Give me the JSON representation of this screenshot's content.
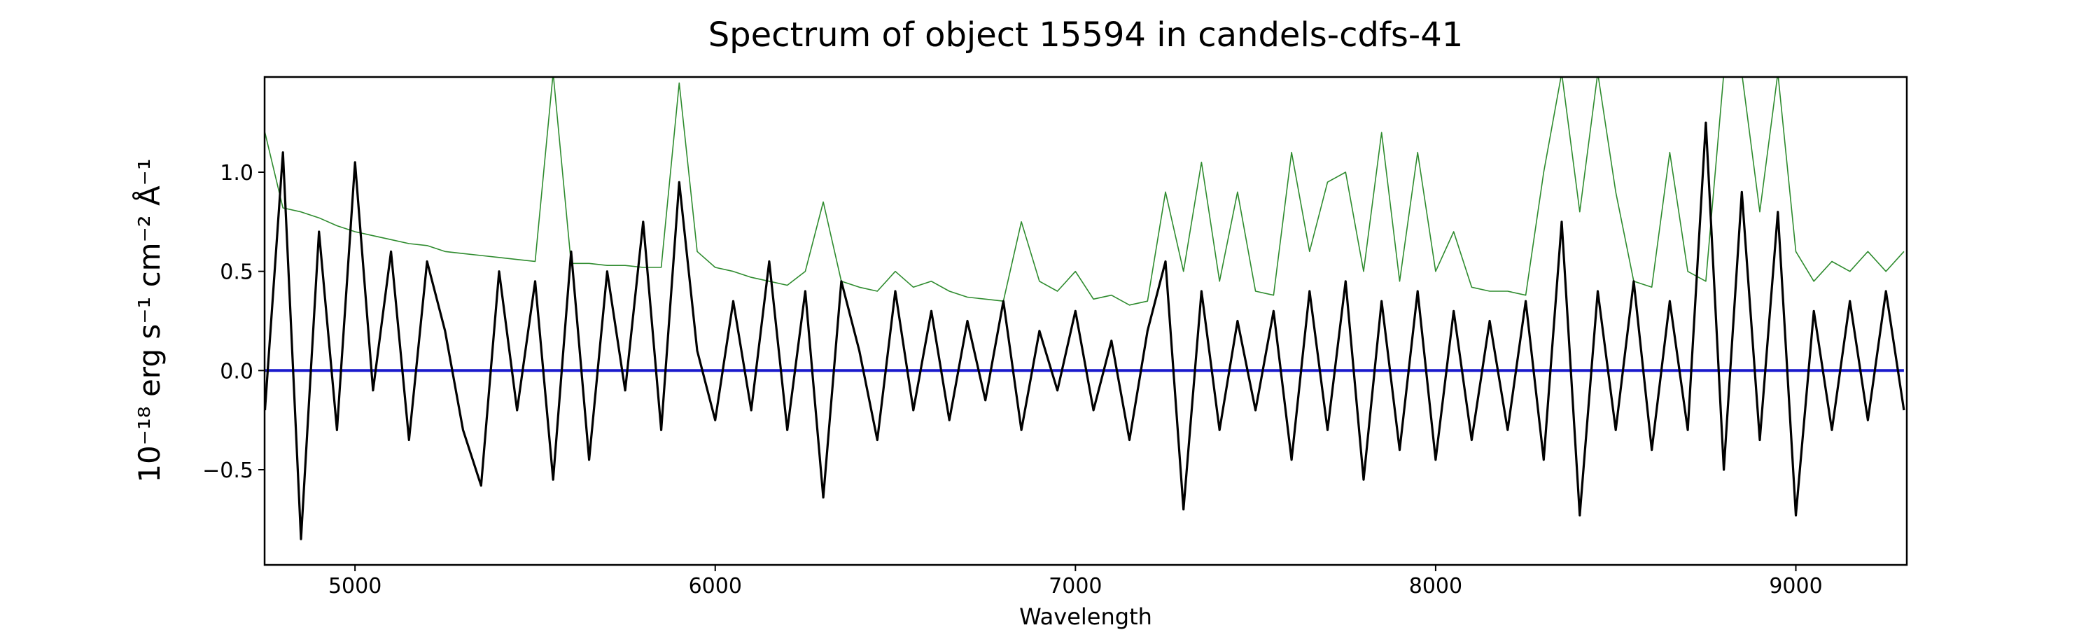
{
  "chart_data": {
    "type": "line",
    "title": "Spectrum of object 15594 in candels-cdfs-41",
    "x_label": "Wavelength",
    "y_label": "10⁻¹⁸ erg s⁻¹ cm⁻² Å⁻¹",
    "x": [
      4750,
      4800,
      4850,
      4900,
      4950,
      5000,
      5050,
      5100,
      5150,
      5200,
      5250,
      5300,
      5350,
      5400,
      5450,
      5500,
      5550,
      5600,
      5650,
      5700,
      5750,
      5800,
      5850,
      5900,
      5950,
      6000,
      6050,
      6100,
      6150,
      6200,
      6250,
      6300,
      6350,
      6400,
      6450,
      6500,
      6550,
      6600,
      6650,
      6700,
      6750,
      6800,
      6850,
      6900,
      6950,
      7000,
      7050,
      7100,
      7150,
      7200,
      7250,
      7300,
      7350,
      7400,
      7450,
      7500,
      7550,
      7600,
      7650,
      7700,
      7750,
      7800,
      7850,
      7900,
      7950,
      8000,
      8050,
      8100,
      8150,
      8200,
      8250,
      8300,
      8350,
      8400,
      8450,
      8500,
      8550,
      8600,
      8650,
      8700,
      8750,
      8800,
      8850,
      8900,
      8950,
      9000,
      9050,
      9100,
      9150,
      9200,
      9250,
      9300
    ],
    "series": [
      {
        "color": "#2e8b2e",
        "values": [
          1.2,
          0.82,
          0.8,
          0.77,
          0.73,
          0.7,
          0.68,
          0.66,
          0.64,
          0.63,
          0.6,
          0.59,
          0.58,
          0.57,
          0.56,
          0.55,
          1.5,
          0.54,
          0.54,
          0.53,
          0.53,
          0.52,
          0.52,
          1.45,
          0.6,
          0.52,
          0.5,
          0.47,
          0.45,
          0.43,
          0.5,
          0.85,
          0.45,
          0.42,
          0.4,
          0.5,
          0.42,
          0.45,
          0.4,
          0.37,
          0.36,
          0.35,
          0.75,
          0.45,
          0.4,
          0.5,
          0.36,
          0.38,
          0.33,
          0.35,
          0.9,
          0.5,
          1.05,
          0.45,
          0.9,
          0.4,
          0.38,
          1.1,
          0.6,
          0.95,
          1.0,
          0.5,
          1.2,
          0.45,
          1.1,
          0.5,
          0.7,
          0.42,
          0.4,
          0.4,
          0.38,
          1.0,
          1.5,
          0.8,
          1.5,
          0.9,
          0.45,
          0.42,
          1.1,
          0.5,
          0.45,
          1.5,
          1.5,
          0.8,
          1.5,
          0.6,
          0.45,
          0.55,
          0.5,
          0.6,
          0.5,
          0.6
        ]
      },
      {
        "color": "#1a1acc",
        "values": [
          0,
          0,
          0,
          0,
          0,
          0,
          0,
          0,
          0,
          0,
          0,
          0,
          0,
          0,
          0,
          0,
          0,
          0,
          0,
          0,
          0,
          0,
          0,
          0,
          0,
          0,
          0,
          0,
          0,
          0,
          0,
          0,
          0,
          0,
          0,
          0,
          0,
          0,
          0,
          0,
          0,
          0,
          0,
          0,
          0,
          0,
          0,
          0,
          0,
          0,
          0,
          0,
          0,
          0,
          0,
          0,
          0,
          0,
          0,
          0,
          0,
          0,
          0,
          0,
          0,
          0,
          0,
          0,
          0,
          0,
          0,
          0,
          0,
          0,
          0,
          0,
          0,
          0,
          0,
          0,
          0,
          0,
          0,
          0,
          0,
          0,
          0,
          0,
          0,
          0,
          0,
          0
        ]
      },
      {
        "color": "#000000",
        "values": [
          -0.2,
          1.1,
          -0.85,
          0.7,
          -0.3,
          1.05,
          -0.1,
          0.6,
          -0.35,
          0.55,
          0.2,
          -0.3,
          -0.58,
          0.5,
          -0.2,
          0.45,
          -0.55,
          0.6,
          -0.45,
          0.5,
          -0.1,
          0.75,
          -0.3,
          0.95,
          0.1,
          -0.25,
          0.35,
          -0.2,
          0.55,
          -0.3,
          0.4,
          -0.64,
          0.45,
          0.1,
          -0.35,
          0.4,
          -0.2,
          0.3,
          -0.25,
          0.25,
          -0.15,
          0.35,
          -0.3,
          0.2,
          -0.1,
          0.3,
          -0.2,
          0.15,
          -0.35,
          0.2,
          0.55,
          -0.7,
          0.4,
          -0.3,
          0.25,
          -0.2,
          0.3,
          -0.45,
          0.4,
          -0.3,
          0.45,
          -0.55,
          0.35,
          -0.4,
          0.4,
          -0.45,
          0.3,
          -0.35,
          0.25,
          -0.3,
          0.35,
          -0.45,
          0.75,
          -0.73,
          0.4,
          -0.3,
          0.45,
          -0.4,
          0.35,
          -0.3,
          1.25,
          -0.5,
          0.9,
          -0.35,
          0.8,
          -0.73,
          0.3,
          -0.3,
          0.35,
          -0.25,
          0.4,
          -0.2
        ]
      }
    ],
    "xlim": [
      4749,
      9308
    ],
    "ylim": [
      -0.98,
      1.48
    ],
    "xticks": [
      5000,
      6000,
      7000,
      8000,
      9000
    ],
    "yticks": [
      {
        "value": -0.5,
        "label": "−0.5"
      },
      {
        "value": 0,
        "label": "0.0"
      },
      0.5,
      {
        "value": 1,
        "label": "1.0"
      }
    ],
    "grid": false
  }
}
